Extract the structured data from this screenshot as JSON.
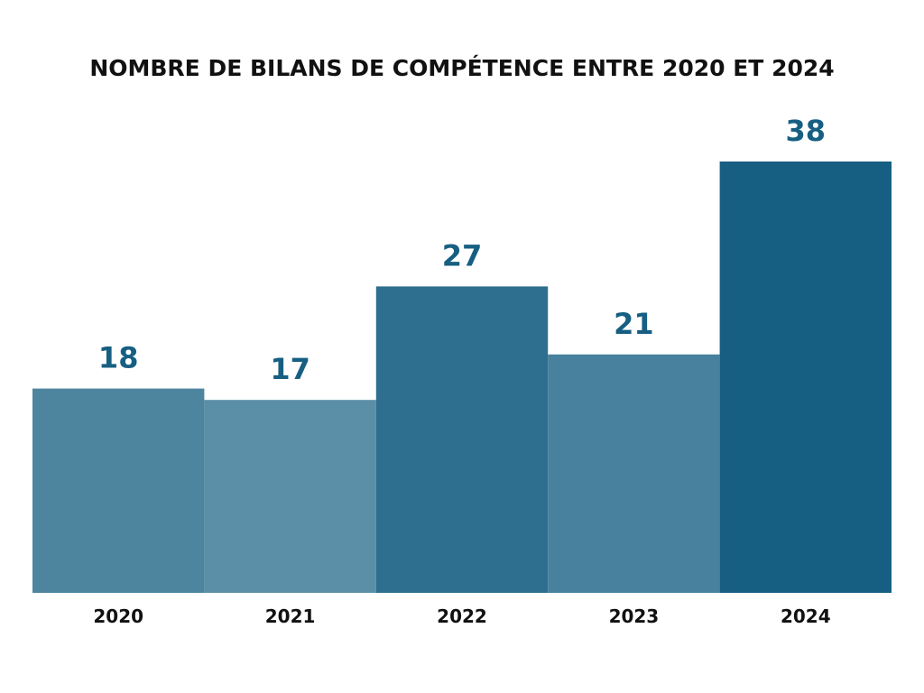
{
  "chart_data": {
    "type": "bar",
    "title": "NOMBRE DE BILANS DE COMPÉTENCE ENTRE 2020 ET 2024",
    "categories": [
      "2020",
      "2021",
      "2022",
      "2023",
      "2024"
    ],
    "values": [
      18,
      17,
      27,
      21,
      38
    ],
    "xlabel": "",
    "ylabel": "",
    "ylim": [
      0,
      38
    ],
    "grid": false,
    "legend": "none",
    "data_labels": true,
    "bar_colors": [
      "#4d859f",
      "#5b8ea7",
      "#2e6e8e",
      "#47819d",
      "#175f82"
    ],
    "label_color": "#175f82"
  }
}
